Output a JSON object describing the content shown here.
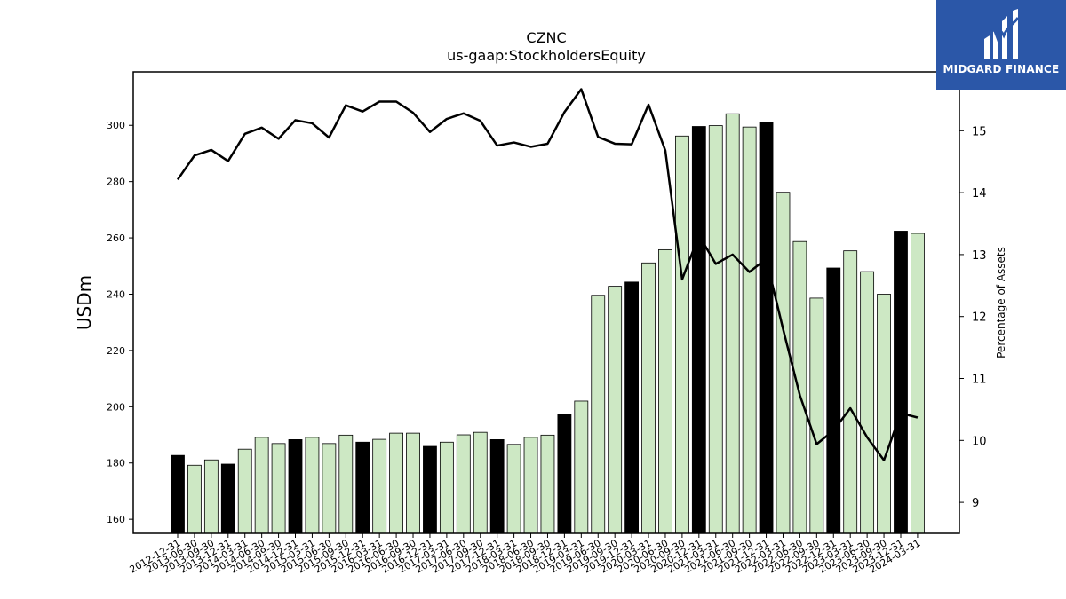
{
  "chart_data": {
    "type": "bar",
    "title": "CZNC",
    "subtitle": "us-gaap:StockholdersEquity",
    "ylabel": "USDm",
    "y2label": "Percentage of Assets",
    "ylim": [
      155,
      319
    ],
    "y2lim": [
      8.5,
      15.95
    ],
    "yticks": [
      160,
      180,
      200,
      220,
      240,
      260,
      280,
      300
    ],
    "y2ticks": [
      9,
      10,
      11,
      12,
      13,
      14,
      15
    ],
    "categories": [
      "2012-12-31",
      "2013-06-30",
      "2013-09-30",
      "2013-12-31",
      "2014-03-31",
      "2014-06-30",
      "2014-09-30",
      "2014-12-31",
      "2015-03-31",
      "2015-06-30",
      "2015-09-30",
      "2015-12-31",
      "2016-03-31",
      "2016-06-30",
      "2016-09-30",
      "2016-12-31",
      "2017-03-31",
      "2017-06-30",
      "2017-09-30",
      "2017-12-31",
      "2018-03-31",
      "2018-06-30",
      "2018-09-30",
      "2018-12-31",
      "2019-03-31",
      "2019-06-30",
      "2019-09-30",
      "2019-12-31",
      "2020-03-31",
      "2020-06-30",
      "2020-09-30",
      "2020-12-31",
      "2021-03-31",
      "2021-06-30",
      "2021-09-30",
      "2021-12-31",
      "2022-03-31",
      "2022-06-30",
      "2022-09-30",
      "2022-12-31",
      "2023-03-31",
      "2023-06-30",
      "2023-09-30",
      "2023-12-31",
      "2024-03-31"
    ],
    "series": [
      {
        "type": "bar",
        "values": [
          182.7,
          179.2,
          181.1,
          179.6,
          184.9,
          189.1,
          186.9,
          188.3,
          189.1,
          186.9,
          189.9,
          187.4,
          188.4,
          190.6,
          190.6,
          185.9,
          187.4,
          190.0,
          190.9,
          188.3,
          186.6,
          189.1,
          189.9,
          197.2,
          202.0,
          239.6,
          242.8,
          244.3,
          251.1,
          255.8,
          296.2,
          299.6,
          299.9,
          304.1,
          299.4,
          301.1,
          276.2,
          258.7,
          238.6,
          249.3,
          255.4,
          248.0,
          240.0,
          262.4,
          261.6
        ],
        "highlight": [
          true,
          false,
          false,
          true,
          false,
          false,
          false,
          true,
          false,
          false,
          false,
          true,
          false,
          false,
          false,
          true,
          false,
          false,
          false,
          true,
          false,
          false,
          false,
          true,
          false,
          false,
          false,
          true,
          false,
          false,
          false,
          true,
          false,
          false,
          false,
          true,
          false,
          false,
          false,
          true,
          false,
          false,
          false,
          true,
          false
        ],
        "colors": {
          "normal": "#cde8c4",
          "highlight": "#000000"
        }
      },
      {
        "type": "line",
        "axis": "right",
        "color": "#000000",
        "values": [
          14.21,
          14.6,
          14.69,
          14.51,
          14.95,
          15.05,
          14.87,
          15.17,
          15.12,
          14.89,
          15.41,
          15.31,
          15.47,
          15.47,
          15.29,
          14.98,
          15.19,
          15.28,
          15.16,
          14.76,
          14.81,
          14.74,
          14.79,
          15.3,
          15.67,
          14.9,
          14.79,
          14.78,
          15.42,
          14.68,
          12.6,
          13.31,
          12.85,
          13.0,
          12.72,
          12.93,
          11.8,
          10.73,
          9.94,
          10.16,
          10.52,
          10.05,
          9.68,
          10.44,
          10.37
        ]
      }
    ],
    "grid": false
  },
  "logo": {
    "text": "MIDGARD FINANCE",
    "background": "#2b57a8"
  }
}
